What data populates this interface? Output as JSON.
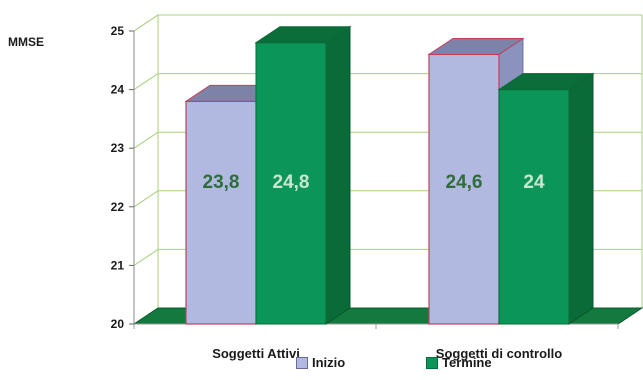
{
  "chart_data": {
    "type": "bar",
    "ylabel": "MMSE",
    "ylim": [
      20,
      25
    ],
    "yticks": [
      20,
      21,
      22,
      23,
      24,
      25
    ],
    "categories": [
      "Soggetti Attivi",
      "Soggetti di controllo"
    ],
    "series": [
      {
        "name": "Inizio",
        "values": [
          23.8,
          24.6
        ],
        "labels": [
          "23,8",
          "24,6"
        ]
      },
      {
        "name": "Termine",
        "values": [
          24.8,
          24
        ],
        "labels": [
          "24,8",
          "24"
        ]
      }
    ],
    "grid": true,
    "legend": "bottom",
    "bar_3d": true
  },
  "colors": {
    "inizio_front": "#b1b9e0",
    "inizio_top": "#7d82a8",
    "inizio_side": "#8c92be",
    "inizio_edge": "#c0405a",
    "inizio_label": "#2e6d3a",
    "termine_front": "#0b9558",
    "termine_top": "#0a6d3a",
    "termine_side": "#0a6a38",
    "termine_label": "#c8e6d2",
    "floor": "#13793f",
    "grid": "#a9cf7e"
  }
}
